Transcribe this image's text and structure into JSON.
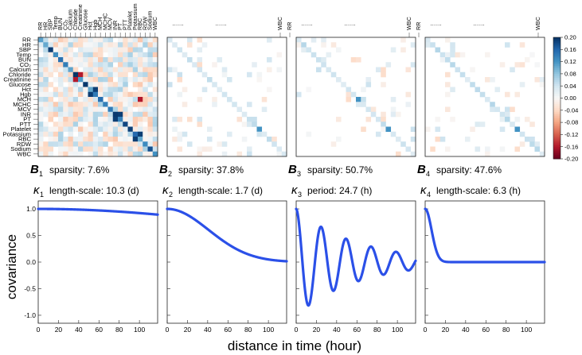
{
  "chart_data": [
    {
      "type": "heatmap",
      "panel": "B1",
      "title_symbol": "B",
      "title_sub": "1",
      "title_text": "sparsity: 7.6%",
      "row_labels": [
        "RR",
        "HR",
        "SBP",
        "Temp",
        "BUN",
        "CO₂",
        "Calcium",
        "Chloride",
        "Creatinine",
        "Glucose",
        "Hct",
        "Hgb",
        "MCH",
        "MCHC",
        "MCV",
        "INR",
        "PT",
        "PTT",
        "Platelet",
        "Potassium",
        "RBC",
        "RDW",
        "Sodium",
        "WBC"
      ],
      "column_labels": [
        "RR",
        "HR",
        "SBP",
        "Temp",
        "BUN",
        "CO₂",
        "Calcium",
        "Chloride",
        "Creatinine",
        "Glucose",
        "Hct",
        "Hgb",
        "MCH",
        "MCHC",
        "MCV",
        "INR",
        "PT",
        "PTT",
        "Platelet",
        "Potassium",
        "RBC",
        "RDW",
        "Sodium",
        "WBC"
      ],
      "diagonal_strength": 0.2,
      "density": 0.924,
      "seed": 3
    },
    {
      "type": "heatmap",
      "panel": "B2",
      "title_symbol": "B",
      "title_sub": "2",
      "title_text": "sparsity: 37.8%",
      "column_labels": [
        "……",
        "……",
        "WBC",
        "RR"
      ],
      "diagonal_strength": 0.06,
      "density": 0.12,
      "seed": 7
    },
    {
      "type": "heatmap",
      "panel": "B3",
      "title_symbol": "B",
      "title_sub": "3",
      "title_text": "sparsity: 50.7%",
      "column_labels": [
        "……",
        "……",
        "WBC",
        "RR"
      ],
      "diagonal_strength": 0.06,
      "density": 0.1,
      "seed": 11
    },
    {
      "type": "heatmap",
      "panel": "B4",
      "title_symbol": "B",
      "title_sub": "4",
      "title_text": "sparsity: 47.6%",
      "column_labels": [
        "……",
        "……",
        "WBC"
      ],
      "diagonal_strength": 0.06,
      "density": 0.1,
      "seed": 13
    },
    {
      "type": "colorbar",
      "range": [
        -0.2,
        0.2
      ],
      "ticks": [
        "0.20",
        "0.16",
        "0.12",
        "0.08",
        "0.04",
        "0.00",
        "-0.04",
        "-0.08",
        "-0.12",
        "-0.16",
        "-0.20"
      ],
      "colors": {
        "negative": "#67001f",
        "zero": "#f7f7f7",
        "positive": "#053061"
      }
    },
    {
      "type": "line",
      "panel": "kappa1",
      "title_symbol": "κ",
      "title_sub": "1",
      "title_text": "length-scale: 10.3 (d)",
      "kernel": "rbf",
      "length_scale_hours": 247.2,
      "xlim": [
        0,
        118
      ],
      "ylim": [
        -1.15,
        1.15
      ],
      "xticks": [
        0,
        20,
        40,
        60,
        80,
        100
      ],
      "yticks": [
        1.0,
        0.5,
        0.0,
        -0.5,
        -1.0
      ],
      "ytick_labels": [
        "1.0",
        "0.5",
        "0.0",
        "-0.5",
        "-1.0"
      ],
      "color": "#2b50e8"
    },
    {
      "type": "line",
      "panel": "kappa2",
      "title_symbol": "κ",
      "title_sub": "2",
      "title_text": "length-scale: 1.7 (d)",
      "kernel": "rbf",
      "length_scale_hours": 40.8,
      "xlim": [
        0,
        118
      ],
      "ylim": [
        -1.15,
        1.15
      ],
      "xticks": [
        0,
        20,
        40,
        60,
        80,
        100
      ],
      "color": "#2b50e8"
    },
    {
      "type": "line",
      "panel": "kappa3",
      "title_symbol": "κ",
      "title_sub": "3",
      "title_text": "period: 24.7 (h)",
      "kernel": "damped-periodic",
      "period_hours": 24.7,
      "decay_hours": 60,
      "xlim": [
        0,
        118
      ],
      "ylim": [
        -1.15,
        1.15
      ],
      "xticks": [
        0,
        20,
        40,
        60,
        80,
        100
      ],
      "color": "#2b50e8"
    },
    {
      "type": "line",
      "panel": "kappa4",
      "title_symbol": "κ",
      "title_sub": "4",
      "title_text": "length-scale: 6.3 (h)",
      "kernel": "rbf",
      "length_scale_hours": 6.3,
      "xlim": [
        0,
        118
      ],
      "ylim": [
        -1.15,
        1.15
      ],
      "xticks": [
        0,
        20,
        40,
        60,
        80,
        100
      ],
      "color": "#2b50e8"
    }
  ],
  "labels": {
    "ylabel": "covariance",
    "xlabel": "distance in time (hour)"
  }
}
